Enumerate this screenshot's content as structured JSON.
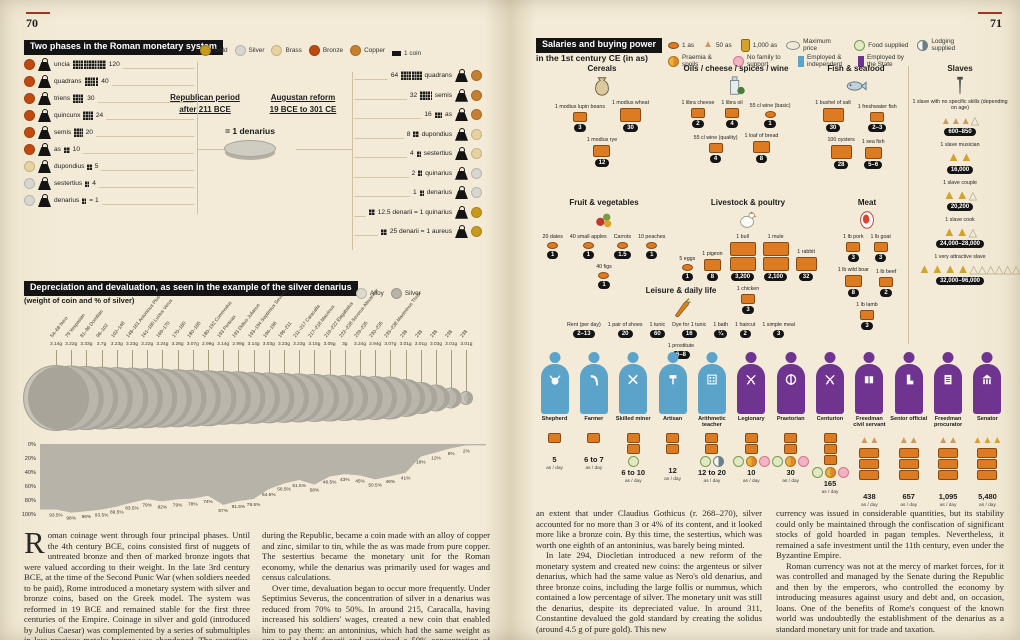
{
  "pages": {
    "left_number": "70",
    "right_number": "71"
  },
  "colors": {
    "accent_orange": "#dd7b22",
    "independent_blue": "#5ba3c9",
    "state_purple": "#6f3390",
    "gold": "#c9991b",
    "silver": "#d8d6d0",
    "brass": "#e8d2a0",
    "bronze": "#bf4a10",
    "copper": "#c67f2e",
    "pile_gold": "#d4a32c",
    "pile_tan": "#c99b62",
    "pile_outline": "#b0a180"
  },
  "phases": {
    "title": "Two phases in the Roman monetary system",
    "legend": [
      {
        "label": "Gold",
        "metal": "gold"
      },
      {
        "label": "Silver",
        "metal": "silver"
      },
      {
        "label": "Brass",
        "metal": "brass"
      },
      {
        "label": "Bronze",
        "metal": "bronze"
      },
      {
        "label": "Copper",
        "metal": "copper"
      },
      {
        "label": "1 coin",
        "metal": "black",
        "shape": "bar"
      }
    ],
    "equals_label": "= 1 denarius",
    "republican": {
      "heading": "Republican period",
      "subheading": "after 211 BCE",
      "items": [
        {
          "name": "uncia",
          "value": "120",
          "metal": "bronze"
        },
        {
          "name": "quadrans",
          "value": "40",
          "metal": "bronze"
        },
        {
          "name": "triens",
          "value": "30",
          "metal": "bronze"
        },
        {
          "name": "quincunx",
          "value": "24",
          "metal": "bronze"
        },
        {
          "name": "semis",
          "value": "20",
          "metal": "bronze"
        },
        {
          "name": "as",
          "value": "10",
          "metal": "bronze"
        },
        {
          "name": "dupondius",
          "value": "5",
          "metal": "brass"
        },
        {
          "name": "sestertius",
          "value": "4",
          "metal": "silver"
        },
        {
          "name": "denarius",
          "value": "= 1",
          "metal": "silver"
        }
      ]
    },
    "augustan": {
      "heading": "Augustan reform",
      "subheading": "19 BCE to 301 CE",
      "items": [
        {
          "value": "64",
          "name": "quadrans",
          "metal": "copper"
        },
        {
          "value": "32",
          "name": "semis",
          "metal": "copper"
        },
        {
          "value": "16",
          "name": "as",
          "metal": "copper"
        },
        {
          "value": "8",
          "name": "dupondius",
          "metal": "brass"
        },
        {
          "value": "4",
          "name": "sestertius",
          "metal": "brass"
        },
        {
          "value": "2",
          "name": "quinarius",
          "metal": "silver"
        },
        {
          "value": "1",
          "name": "denarius",
          "metal": "silver"
        },
        {
          "value": "",
          "name": "12.5 denarii = 1 quinarius",
          "metal": "gold"
        },
        {
          "value": "",
          "name": "25 denarii = 1 aureus",
          "metal": "gold"
        }
      ]
    }
  },
  "devaluation": {
    "title": "Depreciation and devaluation, as seen in the example of the silver denarius",
    "subtitle": "(weight of coin and % of silver)",
    "legend": [
      {
        "label": "Alloy",
        "color": "#ddd9cc"
      },
      {
        "label": "Silver",
        "color": "#b7b3a8"
      }
    ],
    "chart_data": {
      "type": "area",
      "title": "Depreciation and devaluation, as seen in the example of the silver denarius",
      "subtitle": "(weight of coin and % of silver)",
      "x_labels": [
        "54–68 Nero",
        "79 Vespasian",
        "81–96 Domitian",
        "96–102",
        "102–148",
        "148–161 Antoninus Pius",
        "161–180 Lucius Verus",
        "169–170",
        "170–180",
        "180–185",
        "180–192 Commodus",
        "193 Pertinax",
        "193 Didius Julianus",
        "193–194 Septimius Severus",
        "194–196",
        "196–211",
        "211–217 Caracalla",
        "217–218 Macrinus",
        "219–222 Elagabalus",
        "222–228 Severus Alexander",
        "229–235",
        "230–235",
        "235–238 Maximinus Thrax",
        "238",
        "238",
        "238",
        "238",
        "238"
      ],
      "coin_weight_g": [
        3.14,
        3.22,
        3.33,
        3.7,
        3.23,
        3.23,
        3.22,
        3.24,
        3.26,
        3.07,
        2.99,
        3.14,
        2.99,
        3.14,
        3.03,
        3.23,
        3.23,
        3.15,
        3.05,
        3,
        3.24,
        2.94,
        3.07,
        3.01,
        3.01,
        3.03,
        3.01,
        3.01
      ],
      "silver_percent": [
        93.5,
        98,
        96,
        93.5,
        89.5,
        83.5,
        79,
        82,
        79,
        78,
        74,
        87,
        81.5,
        78.5,
        64.5,
        56.5,
        51.5,
        58,
        46.5,
        43,
        45,
        50.5,
        46,
        41,
        18,
        12,
        6,
        2
      ],
      "y_ticks": [
        "0%",
        "20%",
        "40%",
        "60%",
        "80%",
        "100%"
      ],
      "ylim": [
        0,
        100
      ],
      "legend_entries": [
        "Alloy",
        "Silver"
      ],
      "grid": false
    }
  },
  "essay": {
    "cols": [
      {
        "dropcap": "R",
        "paras": [
          "oman coinage went through four principal phases. Until the 4th century BCE, coins consisted first of nuggets of untreated bronze and then of marked bronze ingots that were valued according to their weight. In the late 3rd century BCE, at the time of the Second Punic War (when soldiers needed to be paid), Rome introduced a monetary system with silver and bronze coins, based on the Greek model. The system was reformed in 19 BCE and remained stable for the first three centuries of the Empire. Coinage in silver and gold (introduced by Julius Caesar) was complemented by a series of submultiples in less precious metals; bronze was abandoned. The sestertius, which had been a tiny piece of silver"
        ]
      },
      {
        "paras": [
          "during the Republic, became a coin made with an alloy of copper and zinc, similar to tin, while the as was made from pure copper. The sestertius became the monetary unit for the Roman economy, while the denarius was primarily used for wages and census calculations.",
          "Over time, devaluation began to occur more frequently. Under Septimius Severus, the concentration of silver in a denarius was reduced from 70% to 50%. In around 215, Caracalla, having increased his soldiers' wages, created a new coin that enabled him to pay them: an antoninius, which had the same weight as one and a half denarii and contained a 50% concentration of silver. The antoninius gradually lost its intrinsic value, to such"
        ]
      },
      {
        "paras": [
          "an extent that under Claudius Gothicus (r. 268–270), silver accounted for no more than 3 or 4% of its content, and it looked more like a bronze coin. By this time, the sestertius, which was worth one eighth of an antoninius, was barely being minted.",
          "In late 294, Diocletian introduced a new reform of the monetary system and created new coins: the argenteus or silver denarius, which had the same value as Nero's old denarius, and three bronze coins, including the large follis or nummus, which contained a low percentage of silver. The monetary unit was still the denarius, despite its depreciated value. In around 311, Constantine devalued the gold standard by creating the solidus (around 4.5 g of pure gold). This new"
        ]
      },
      {
        "paras": [
          "currency was issued in considerable quantities, but its stability could only be maintained through the confiscation of significant stocks of gold hoarded in pagan temples. Nevertheless, it remained a safe investment until the 11th century, even under the Byzantine Empire.",
          "Roman currency was not at the mercy of market forces, for it was controlled and managed by the Senate during the Republic and then by the emperors, who controlled the economy by introducing measures against usury and debt and, on occasion, loans. One of the benefits of Rome's conquest of the known world was undoubtedly the establishment of the denarius as a standard monetary unit for trade and taxation."
        ]
      }
    ]
  },
  "salaries": {
    "title_line1": "Salaries and buying power",
    "title_line2": "in the 1st century CE (in as)",
    "legend": [
      {
        "label": "1 as",
        "icon": "as-coin-icon"
      },
      {
        "label": "50 as",
        "icon": "pouch-icon"
      },
      {
        "label": "1,000 as",
        "icon": "jar-icon"
      },
      {
        "label": "Maximum price",
        "icon": "max-price-icon"
      },
      {
        "label": "Food supplied",
        "icon": "food-icon"
      },
      {
        "label": "Lodging supplied",
        "icon": "lodging-icon"
      },
      {
        "label": "Praemia & spoils",
        "icon": "praemia-icon"
      },
      {
        "label": "No family to support",
        "icon": "no-family-icon"
      },
      {
        "label": "Employed & independent",
        "icon": "independent-person-icon"
      },
      {
        "label": "Employed by the State",
        "icon": "state-person-icon"
      }
    ],
    "sections": [
      {
        "id": "cereals",
        "name": "Cereals",
        "icon": "sack-icon",
        "items": [
          {
            "label": "1 modius lupin beans",
            "value": "3"
          },
          {
            "label": "1 modius wheat",
            "value": "30"
          },
          {
            "label": "1 modius rye",
            "value": "12"
          }
        ]
      },
      {
        "id": "oils",
        "name": "Oils / cheese / spices / wine",
        "icon": "oil-icon",
        "items": [
          {
            "label": "1 libra cheese",
            "value": "2"
          },
          {
            "label": "1 libra oil",
            "value": "4"
          },
          {
            "label": "55 cl wine (basic)",
            "value": "1"
          },
          {
            "label": "55 cl wine (quality)",
            "value": "4"
          },
          {
            "label": "1 loaf of bread",
            "value": "8"
          }
        ]
      },
      {
        "id": "fish",
        "name": "Fish & seafood",
        "icon": "fish-icon",
        "items": [
          {
            "label": "1 bushel of salt",
            "value": "30"
          },
          {
            "label": "1 freshwater fish",
            "value": "2–3"
          },
          {
            "label": "100 oysters",
            "value": "28"
          },
          {
            "label": "1 sea fish",
            "value": "5–6"
          }
        ]
      },
      {
        "id": "fruit",
        "name": "Fruit & vegetables",
        "icon": "fruit-icon",
        "items": [
          {
            "label": "20 dates",
            "value": "1"
          },
          {
            "label": "40 small apples",
            "value": "1"
          },
          {
            "label": "Carrots",
            "value": "1.5"
          },
          {
            "label": "10 peaches",
            "value": "1"
          },
          {
            "label": "40 figs",
            "value": "1"
          }
        ]
      },
      {
        "id": "livestock",
        "name": "Livestock & poultry",
        "icon": "hen-icon",
        "items": [
          {
            "label": "5 eggs",
            "value": "1"
          },
          {
            "label": "1 pigeon",
            "value": "8"
          },
          {
            "label": "1 bull",
            "value": "3,200"
          },
          {
            "label": "1 mule",
            "value": "2,100"
          },
          {
            "label": "1 rabbit",
            "value": "32"
          },
          {
            "label": "1 chicken",
            "value": "3"
          }
        ]
      },
      {
        "id": "meat",
        "name": "Meat",
        "icon": "meat-icon",
        "items": [
          {
            "label": "1 lb pork",
            "value": "3"
          },
          {
            "label": "1 lb goat",
            "value": "3"
          },
          {
            "label": "1 lb wild boar",
            "value": "8"
          },
          {
            "label": "1 lb beef",
            "value": "2"
          },
          {
            "label": "1 lb lamb",
            "value": "3"
          }
        ]
      },
      {
        "id": "leisure",
        "name": "Leisure & daily life",
        "icon": "carrot-icon",
        "items": [
          {
            "label": "Rent (per day)",
            "value": "2–13"
          },
          {
            "label": "1 pair of shoes",
            "value": "20"
          },
          {
            "label": "1 tunic",
            "value": "60"
          },
          {
            "label": "Dye for 1 tunic",
            "value": "16"
          },
          {
            "label": "1 bath",
            "value": "¼"
          },
          {
            "label": "1 haircut",
            "value": "2"
          },
          {
            "label": "1 simple meal",
            "value": "3"
          },
          {
            "label": "1 prostitute",
            "value": "6–8"
          }
        ]
      },
      {
        "id": "slaves",
        "name": "Slaves",
        "icon": "spike-icon",
        "items": [
          {
            "label": "1 slave with no specific skills (depending on age)",
            "value": "600–850",
            "piles": {
              "tan": 3,
              "outline": 1
            }
          },
          {
            "label": "1 slave musician",
            "value": "16,000",
            "piles": {
              "gold": 2
            }
          },
          {
            "label": "1 slave couple",
            "value": "20,200",
            "piles": {
              "gold": 2,
              "outline": 1
            }
          },
          {
            "label": "1 slave cook",
            "value": "24,000–28,000",
            "piles": {
              "gold": 2,
              "outline": 1
            }
          },
          {
            "label": "1 very attractive slave",
            "value": "32,000–96,000",
            "piles": {
              "gold": 4,
              "outline": 8
            }
          }
        ]
      }
    ],
    "professions": [
      {
        "name": "Shepherd",
        "icon": "cow-icon",
        "type": "independent",
        "wage": "5",
        "unit": "as / day",
        "perks": []
      },
      {
        "name": "Farmer",
        "icon": "sickle-icon",
        "type": "independent",
        "wage": "6 to 7",
        "unit": "as / day",
        "perks": []
      },
      {
        "name": "Skilled miner",
        "icon": "pickaxes-icon",
        "type": "independent",
        "wage": "6 to 10",
        "unit": "as / day",
        "perks": [
          "food"
        ]
      },
      {
        "name": "Artisan",
        "icon": "hammer-icon",
        "type": "independent",
        "wage": "12",
        "unit": "as / day",
        "perks": []
      },
      {
        "name": "Arithmetic teacher",
        "icon": "abacus-icon",
        "type": "independent",
        "wage": "12 to 20",
        "unit": "as / day",
        "perks": [
          "food",
          "lodging"
        ]
      },
      {
        "name": "Legionary",
        "icon": "swords-icon",
        "type": "state",
        "wage": "10",
        "unit": "as / day",
        "perks": [
          "food",
          "praemia",
          "no-family"
        ]
      },
      {
        "name": "Praetorian",
        "icon": "wreath-icon",
        "type": "state",
        "wage": "30",
        "unit": "as / day",
        "perks": [
          "food",
          "praemia",
          "no-family"
        ]
      },
      {
        "name": "Centurion",
        "icon": "swords-icon",
        "type": "state",
        "wage": "165",
        "unit": "as / day",
        "perks": [
          "food",
          "praemia",
          "no-family"
        ]
      },
      {
        "name": "Freedman civil servant",
        "icon": "book-icon",
        "type": "state",
        "wage": "438",
        "unit": "as / day",
        "perks": []
      },
      {
        "name": "Senior official",
        "icon": "boot-icon",
        "type": "state",
        "wage": "657",
        "unit": "as / day",
        "perks": []
      },
      {
        "name": "Freedman procurator",
        "icon": "tablet-icon",
        "type": "state",
        "wage": "1,095",
        "unit": "as / day",
        "perks": []
      },
      {
        "name": "Senator",
        "icon": "temple-icon",
        "type": "state",
        "wage": "5,480",
        "unit": "as / day",
        "perks": []
      }
    ]
  }
}
